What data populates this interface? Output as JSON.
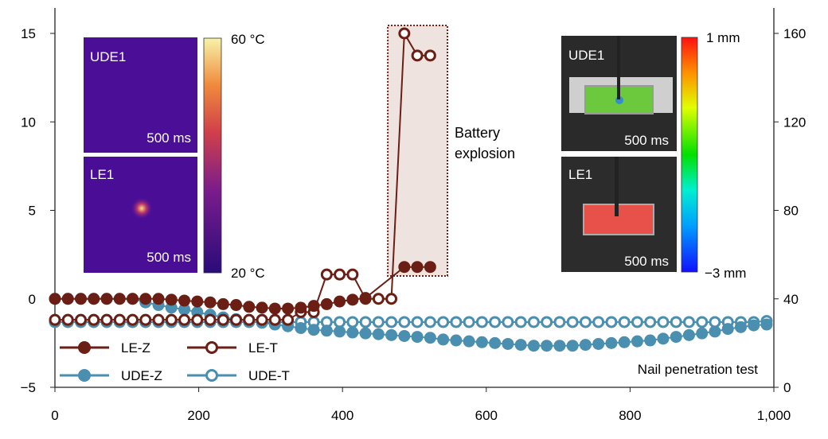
{
  "chart_data": {
    "type": "line",
    "xlim": [
      0,
      1000
    ],
    "ylim_left": [
      -5,
      15
    ],
    "ylim_right": [
      0,
      160
    ],
    "x_ticks": [
      "0",
      "200",
      "400",
      "600",
      "800",
      "1,000"
    ],
    "y_left_ticks": [
      "−5",
      "0",
      "5",
      "10",
      "15"
    ],
    "y_right_ticks": [
      "0",
      "40",
      "80",
      "120",
      "160"
    ],
    "grid": false,
    "legend_position": "bottom-left",
    "colors": {
      "LE": "#6b1f14",
      "UDE": "#4a8fb0",
      "explosion_fill": "#efe3df"
    },
    "series": [
      {
        "name": "LE-Z",
        "axis": "left",
        "marker": "filled",
        "color": "#6b1f14",
        "x": [
          0,
          18,
          36,
          54,
          72,
          90,
          108,
          126,
          144,
          162,
          180,
          198,
          216,
          234,
          252,
          270,
          288,
          306,
          324,
          342,
          360,
          378,
          396,
          414,
          432,
          486,
          504,
          522
        ],
        "y": [
          0,
          0,
          0,
          0,
          0,
          0,
          0,
          0,
          0,
          -0.05,
          -0.1,
          -0.15,
          -0.2,
          -0.3,
          -0.35,
          -0.45,
          -0.5,
          -0.55,
          -0.55,
          -0.5,
          -0.4,
          -0.3,
          -0.15,
          -0.05,
          0.05,
          1.8,
          1.8,
          1.8
        ]
      },
      {
        "name": "LE-T",
        "axis": "right",
        "marker": "open",
        "color": "#6b1f14",
        "x": [
          0,
          18,
          36,
          54,
          72,
          90,
          108,
          126,
          144,
          162,
          180,
          198,
          216,
          234,
          252,
          270,
          288,
          306,
          324,
          342,
          360,
          378,
          396,
          414,
          432,
          450,
          468,
          486,
          504,
          522
        ],
        "y": [
          30.5,
          30.5,
          30.5,
          30.5,
          30.5,
          30.5,
          30.5,
          30.5,
          30.5,
          30.5,
          30.5,
          30.5,
          30.5,
          30.5,
          30.5,
          30.5,
          30.5,
          30.5,
          30.5,
          34,
          34,
          51,
          51,
          51,
          40,
          40,
          40,
          160,
          150,
          150
        ]
      },
      {
        "name": "UDE-Z",
        "axis": "left",
        "marker": "filled",
        "color": "#4a8fb0",
        "x": [
          0,
          18,
          36,
          54,
          72,
          90,
          108,
          126,
          144,
          162,
          180,
          198,
          216,
          234,
          252,
          270,
          288,
          306,
          324,
          342,
          360,
          378,
          396,
          414,
          432,
          450,
          468,
          486,
          504,
          522,
          540,
          558,
          576,
          594,
          612,
          630,
          648,
          666,
          684,
          702,
          720,
          738,
          756,
          774,
          792,
          810,
          828,
          846,
          864,
          882,
          900,
          918,
          936,
          954,
          972,
          990
        ],
        "y": [
          0,
          0,
          0,
          0,
          0,
          0,
          0,
          -0.2,
          -0.35,
          -0.5,
          -0.6,
          -0.75,
          -0.9,
          -1.05,
          -1.15,
          -1.25,
          -1.35,
          -1.45,
          -1.55,
          -1.65,
          -1.75,
          -1.8,
          -1.85,
          -1.9,
          -1.95,
          -2.0,
          -2.05,
          -2.1,
          -2.15,
          -2.2,
          -2.3,
          -2.35,
          -2.4,
          -2.45,
          -2.5,
          -2.55,
          -2.6,
          -2.65,
          -2.65,
          -2.65,
          -2.65,
          -2.6,
          -2.55,
          -2.5,
          -2.45,
          -2.4,
          -2.35,
          -2.25,
          -2.15,
          -2.05,
          -1.95,
          -1.85,
          -1.7,
          -1.6,
          -1.5,
          -1.45
        ]
      },
      {
        "name": "UDE-T",
        "axis": "right",
        "marker": "open",
        "color": "#4a8fb0",
        "x": [
          0,
          18,
          36,
          54,
          72,
          90,
          108,
          126,
          144,
          162,
          180,
          198,
          216,
          234,
          252,
          270,
          288,
          306,
          324,
          342,
          360,
          378,
          396,
          414,
          432,
          450,
          468,
          486,
          504,
          522,
          540,
          558,
          576,
          594,
          612,
          630,
          648,
          666,
          684,
          702,
          720,
          738,
          756,
          774,
          792,
          810,
          828,
          846,
          864,
          882,
          900,
          918,
          936,
          954,
          972,
          990
        ],
        "y": [
          29.5,
          29.5,
          29.5,
          29.5,
          29.5,
          29.5,
          29.5,
          29.5,
          29.5,
          29.5,
          29.5,
          29.5,
          29.5,
          29.5,
          29.5,
          29.5,
          29.5,
          29.5,
          29.5,
          29.5,
          29.5,
          29.5,
          29.5,
          29.5,
          29.5,
          29.5,
          29.5,
          29.5,
          29.5,
          29.5,
          29.5,
          29.5,
          29.5,
          29.5,
          29.5,
          29.5,
          29.5,
          29.5,
          29.5,
          29.5,
          29.5,
          29.5,
          29.5,
          29.5,
          29.5,
          29.5,
          29.5,
          29.5,
          29.5,
          29.5,
          29.5,
          29.5,
          29.5,
          29.5,
          29.5,
          30
        ]
      }
    ],
    "explosion_region_x": [
      463,
      546
    ],
    "annotations": {
      "explosion_line1": "Battery",
      "explosion_line2": "explosion",
      "test_label": "Nail penetration test"
    }
  },
  "insets": {
    "thermal": {
      "top_label": "UDE1",
      "bottom_label": "LE1",
      "time_top": "500 ms",
      "time_bottom": "500 ms",
      "colorbar_max": "60 °C",
      "colorbar_min": "20 °C"
    },
    "deformation": {
      "top_label": "UDE1",
      "bottom_label": "LE1",
      "time_top": "500 ms",
      "time_bottom": "500 ms",
      "colorbar_max": "1 mm",
      "colorbar_min": "−3 mm"
    }
  }
}
